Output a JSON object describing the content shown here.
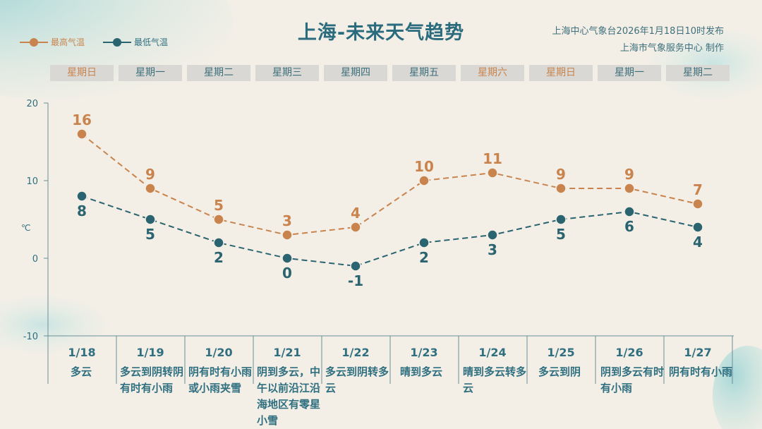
{
  "title": "上海-未来天气趋势",
  "issuer": [
    "上海中心气象台2026年1月18日10时发布",
    "上海市气象服务中心  制作"
  ],
  "legend": {
    "high": "最高气温",
    "low": "最低气温"
  },
  "colors": {
    "high": "#c9844e",
    "low": "#2a6470",
    "text": "#2f6f80",
    "background": "#f3efe6"
  },
  "weekdays": [
    "星期日",
    "星期一",
    "星期二",
    "星期三",
    "星期四",
    "星期五",
    "星期六",
    "星期日",
    "星期一",
    "星期二"
  ],
  "conditions": [
    "多云",
    "多云到阴转阴有时有小雨",
    "阴有时有小雨或小雨夹雪",
    "阴到多云，中午以前沿江沿海地区有零星小雪",
    "多云到阴转多云",
    "晴到多云",
    "晴到多云转多云",
    "多云到阴",
    "阴到多云有时有小雨",
    "阴有时有小雨"
  ],
  "chart_data": {
    "type": "line",
    "x": [
      "1/18",
      "1/19",
      "1/20",
      "1/21",
      "1/22",
      "1/23",
      "1/24",
      "1/25",
      "1/26",
      "1/27"
    ],
    "series": [
      {
        "name": "最高气温",
        "values": [
          16,
          9,
          5,
          3,
          4,
          10,
          11,
          9,
          9,
          7
        ],
        "color": "#c9844e",
        "line_style": "dashed"
      },
      {
        "name": "最低气温",
        "values": [
          8,
          5,
          2,
          0,
          -1,
          2,
          3,
          5,
          6,
          4
        ],
        "color": "#2a6470",
        "line_style": "dashed"
      }
    ],
    "ylabel": "℃",
    "ylim": [
      -10,
      20
    ],
    "yticks": [
      -10,
      0,
      10,
      20
    ],
    "grid": false,
    "legend": "top-left"
  }
}
